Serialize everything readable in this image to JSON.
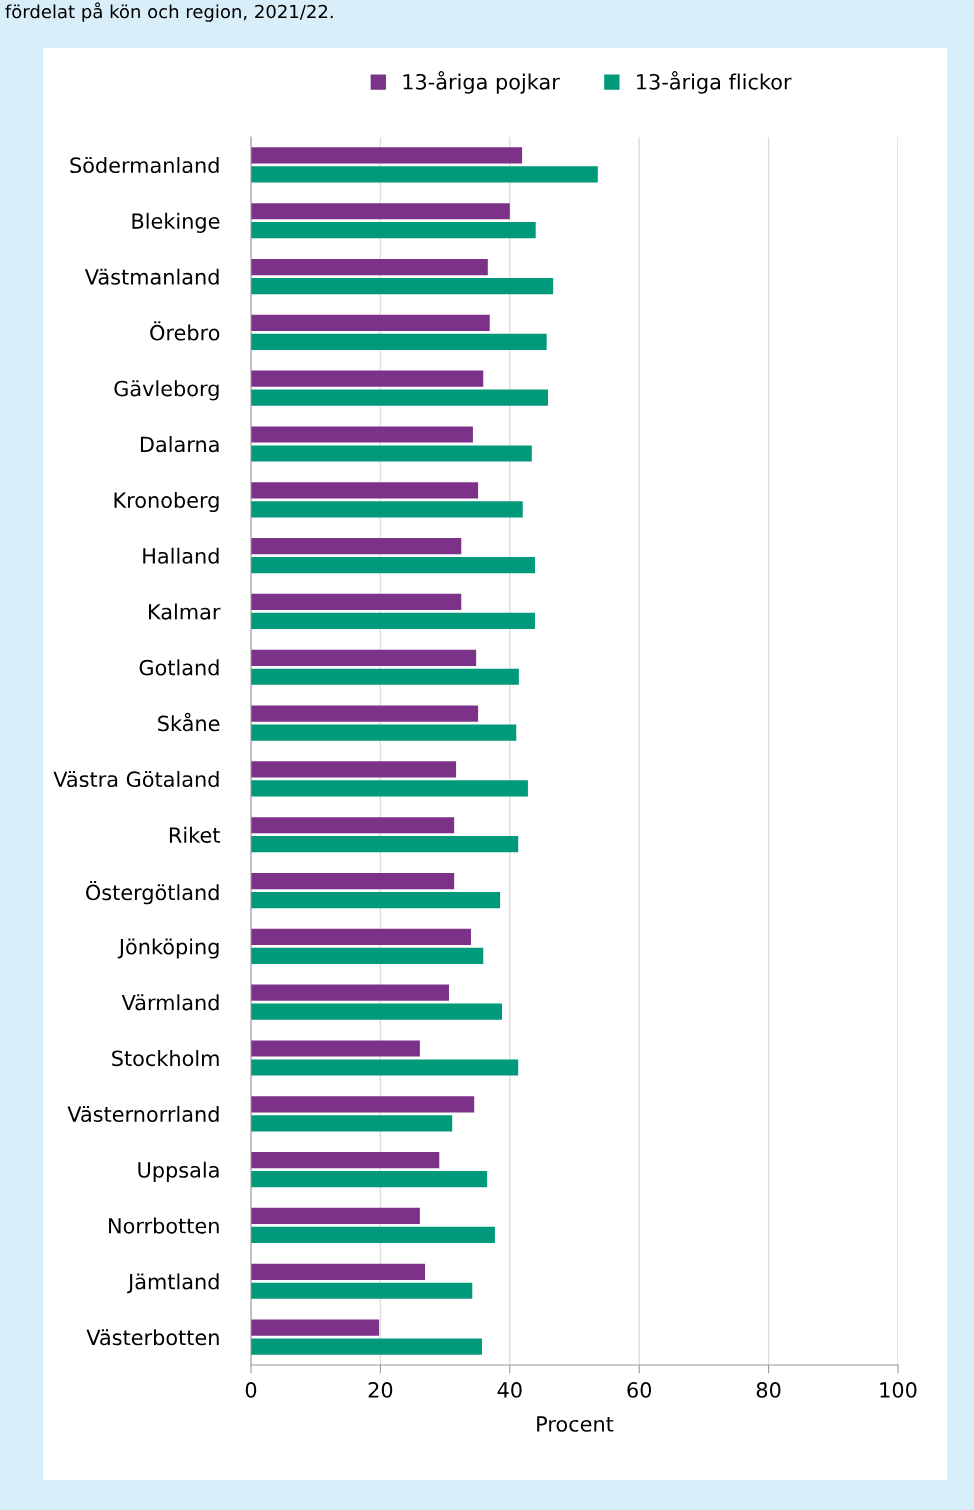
{
  "chart_data": {
    "type": "bar",
    "orientation": "horizontal",
    "title": "fördelat på kön och region, 2021/22.",
    "xlabel": "Procent",
    "categories": [
      "Södermanland",
      "Blekinge",
      "Västmanland",
      "Örebro",
      "Gävleborg",
      "Dalarna",
      "Kronoberg",
      "Halland",
      "Kalmar",
      "Gotland",
      "Skåne",
      "Västra Götaland",
      "Riket",
      "Östergötland",
      "Jönköping",
      "Värmland",
      "Stockholm",
      "Västernorrland",
      "Uppsala",
      "Norrbotten",
      "Jämtland",
      "Västerbotten"
    ],
    "series": [
      {
        "name": "13-åriga pojkar",
        "color": "#7b3288",
        "values": [
          41.9,
          40.0,
          36.6,
          36.9,
          35.9,
          34.3,
          35.1,
          32.5,
          32.5,
          34.8,
          35.1,
          31.7,
          31.4,
          31.4,
          34.0,
          30.6,
          26.1,
          34.5,
          29.1,
          26.1,
          26.9,
          19.8
        ]
      },
      {
        "name": "13-åriga flickor",
        "color": "#00997a",
        "values": [
          53.6,
          44.0,
          46.7,
          45.7,
          45.9,
          43.4,
          42.0,
          43.9,
          43.9,
          41.4,
          41.0,
          42.8,
          41.3,
          38.5,
          35.9,
          38.8,
          41.3,
          31.1,
          36.5,
          37.7,
          34.2,
          35.7
        ]
      }
    ],
    "xlim": [
      0,
      100
    ],
    "xticks": [
      0,
      20,
      40,
      60,
      80,
      100
    ],
    "grid": "x",
    "legend": "top"
  }
}
